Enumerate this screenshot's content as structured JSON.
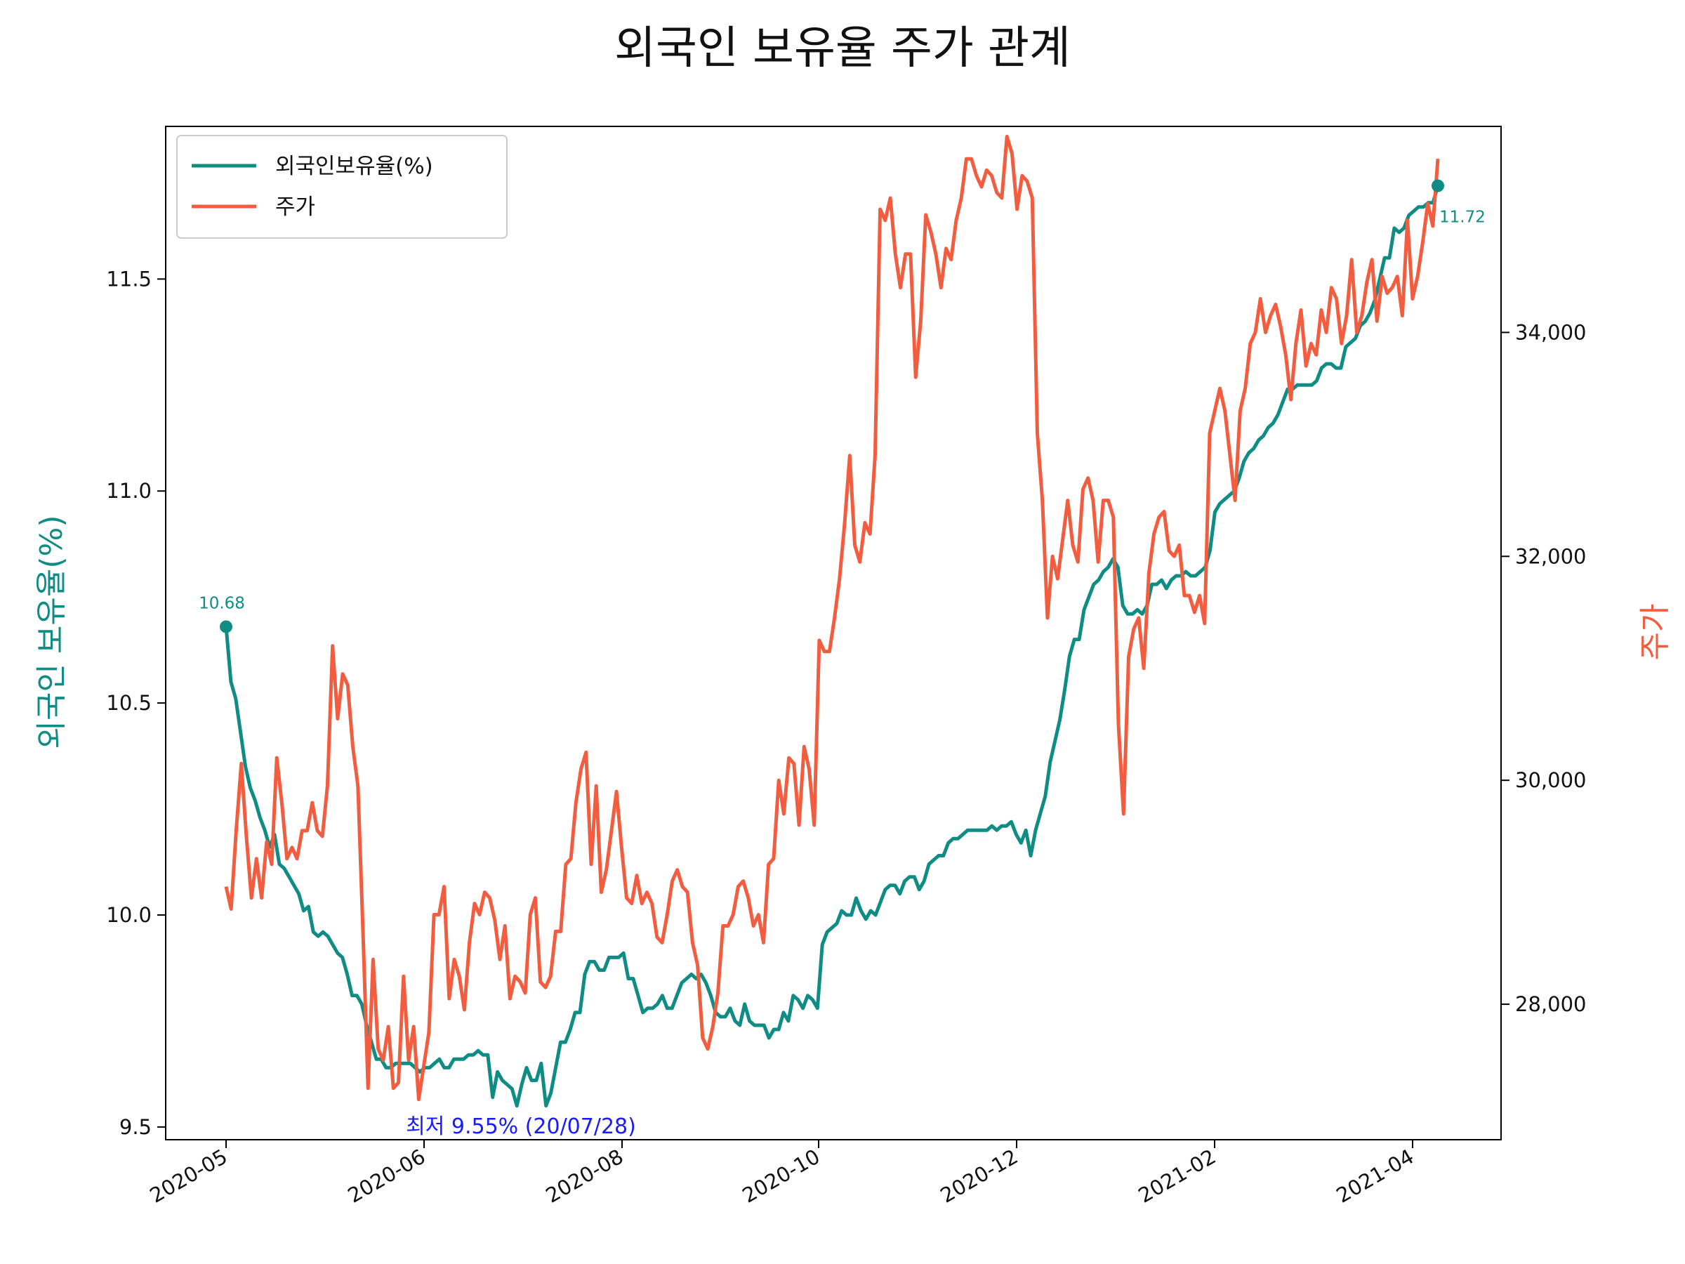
{
  "chart_data": {
    "type": "line",
    "title": "외국인 보유율 주가 관계",
    "ylabel_left": "외국인 보유율(%)",
    "ylabel_right": "주가",
    "legend_placement": "top-left",
    "grid": false,
    "x_ticks": [
      "2020-05",
      "2020-06",
      "2020-08",
      "2020-10",
      "2020-12",
      "2021-02",
      "2021-04"
    ],
    "y_left": {
      "ylim": [
        9.47,
        11.86
      ],
      "ticks": [
        "9.5",
        "10.0",
        "10.5",
        "11.0",
        "11.5"
      ],
      "tick_values": [
        9.5,
        10.0,
        10.5,
        11.0,
        11.5
      ]
    },
    "y_right": {
      "ylim": [
        26790,
        35840
      ],
      "ticks": [
        "28,000",
        "30,000",
        "32,000",
        "34,000"
      ],
      "tick_values": [
        28000,
        30000,
        32000,
        34000
      ]
    },
    "series": [
      {
        "name": "외국인보유율(%)",
        "axis": "left",
        "color": "#0f8c84",
        "values": [
          10.68,
          10.55,
          10.51,
          10.43,
          10.35,
          10.3,
          10.27,
          10.23,
          10.2,
          10.16,
          10.19,
          10.12,
          10.11,
          10.09,
          10.07,
          10.05,
          10.01,
          10.02,
          9.96,
          9.95,
          9.96,
          9.95,
          9.93,
          9.91,
          9.9,
          9.86,
          9.81,
          9.81,
          9.79,
          9.74,
          9.7,
          9.66,
          9.66,
          9.64,
          9.64,
          9.65,
          9.65,
          9.65,
          9.65,
          9.64,
          9.63,
          9.64,
          9.64,
          9.65,
          9.66,
          9.64,
          9.64,
          9.66,
          9.66,
          9.66,
          9.67,
          9.67,
          9.68,
          9.67,
          9.67,
          9.57,
          9.63,
          9.61,
          9.6,
          9.59,
          9.55,
          9.6,
          9.64,
          9.61,
          9.61,
          9.65,
          9.55,
          9.58,
          9.64,
          9.7,
          9.7,
          9.73,
          9.77,
          9.77,
          9.86,
          9.89,
          9.89,
          9.87,
          9.87,
          9.9,
          9.9,
          9.9,
          9.91,
          9.85,
          9.85,
          9.81,
          9.77,
          9.78,
          9.78,
          9.79,
          9.81,
          9.78,
          9.78,
          9.81,
          9.84,
          9.85,
          9.86,
          9.85,
          9.86,
          9.84,
          9.81,
          9.77,
          9.76,
          9.76,
          9.78,
          9.75,
          9.74,
          9.79,
          9.75,
          9.74,
          9.74,
          9.74,
          9.71,
          9.73,
          9.73,
          9.77,
          9.75,
          9.81,
          9.8,
          9.78,
          9.81,
          9.8,
          9.78,
          9.93,
          9.96,
          9.97,
          9.98,
          10.01,
          10.0,
          10.0,
          10.04,
          10.01,
          9.99,
          10.01,
          10.0,
          10.03,
          10.06,
          10.07,
          10.07,
          10.05,
          10.08,
          10.09,
          10.09,
          10.06,
          10.08,
          10.12,
          10.13,
          10.14,
          10.14,
          10.17,
          10.18,
          10.18,
          10.19,
          10.2,
          10.2,
          10.2,
          10.2,
          10.2,
          10.21,
          10.2,
          10.21,
          10.21,
          10.22,
          10.19,
          10.17,
          10.2,
          10.14,
          10.2,
          10.24,
          10.28,
          10.36,
          10.41,
          10.46,
          10.53,
          10.61,
          10.65,
          10.65,
          10.72,
          10.75,
          10.78,
          10.79,
          10.81,
          10.82,
          10.84,
          10.82,
          10.73,
          10.71,
          10.71,
          10.72,
          10.71,
          10.73,
          10.78,
          10.78,
          10.79,
          10.77,
          10.79,
          10.8,
          10.8,
          10.81,
          10.8,
          10.8,
          10.81,
          10.82,
          10.86,
          10.95,
          10.97,
          10.98,
          10.99,
          11.0,
          11.03,
          11.07,
          11.09,
          11.1,
          11.12,
          11.13,
          11.15,
          11.16,
          11.18,
          11.21,
          11.24,
          11.24,
          11.25,
          11.25,
          11.25,
          11.25,
          11.26,
          11.29,
          11.3,
          11.3,
          11.29,
          11.29,
          11.34,
          11.35,
          11.36,
          11.39,
          11.4,
          11.42,
          11.45,
          11.5,
          11.55,
          11.55,
          11.62,
          11.61,
          11.62,
          11.65,
          11.66,
          11.67,
          11.67,
          11.68,
          11.68,
          11.72
        ]
      },
      {
        "name": "주가",
        "axis": "right",
        "color": "#f25d3f",
        "values": [
          29050,
          28850,
          29550,
          30150,
          29500,
          28950,
          29300,
          28950,
          29450,
          29250,
          30200,
          29800,
          29300,
          29400,
          29300,
          29550,
          29550,
          29800,
          29550,
          29500,
          29950,
          31200,
          30550,
          30950,
          30850,
          30300,
          29950,
          28650,
          27250,
          28400,
          27600,
          27500,
          27800,
          27250,
          27300,
          28250,
          27500,
          27800,
          27150,
          27450,
          27750,
          28800,
          28800,
          29050,
          28050,
          28400,
          28250,
          27950,
          28550,
          28900,
          28800,
          29000,
          28950,
          28750,
          28400,
          28700,
          28050,
          28250,
          28200,
          28100,
          28800,
          28950,
          28200,
          28150,
          28250,
          28650,
          28650,
          29250,
          29300,
          29800,
          30100,
          30250,
          29250,
          29950,
          29000,
          29200,
          29550,
          29900,
          29400,
          28950,
          28900,
          29150,
          28900,
          29000,
          28900,
          28600,
          28550,
          28800,
          29100,
          29200,
          29050,
          29000,
          28550,
          28350,
          27700,
          27600,
          27800,
          28100,
          28700,
          28700,
          28800,
          29050,
          29100,
          28950,
          28700,
          28800,
          28550,
          29250,
          29300,
          30000,
          29700,
          30200,
          30150,
          29600,
          30300,
          30100,
          29600,
          31250,
          31150,
          31150,
          31450,
          31800,
          32300,
          32900,
          32100,
          31950,
          32300,
          32200,
          32900,
          35100,
          35000,
          35200,
          34700,
          34400,
          34700,
          34700,
          33600,
          34100,
          35050,
          34900,
          34700,
          34400,
          34750,
          34650,
          35000,
          35200,
          35550,
          35550,
          35400,
          35300,
          35450,
          35400,
          35250,
          35200,
          35750,
          35600,
          35100,
          35400,
          35350,
          35200,
          33100,
          32500,
          31450,
          32000,
          31800,
          32150,
          32500,
          32100,
          31950,
          32600,
          32700,
          32500,
          31950,
          32500,
          32500,
          32350,
          30500,
          29700,
          31100,
          31350,
          31450,
          31000,
          31850,
          32200,
          32350,
          32400,
          32050,
          32000,
          32100,
          31650,
          31650,
          31500,
          31650,
          31400,
          33100,
          33300,
          33500,
          33300,
          32900,
          32500,
          33300,
          33500,
          33900,
          34000,
          34300,
          34000,
          34150,
          34250,
          34050,
          33800,
          33400,
          33900,
          34200,
          33700,
          33900,
          33800,
          34200,
          34000,
          34400,
          34300,
          33900,
          34150,
          34650,
          34000,
          34150,
          34450,
          34650,
          34100,
          34500,
          34350,
          34400,
          34500,
          34150,
          35000,
          34300,
          34500,
          34800,
          35150,
          34950,
          35550
        ]
      }
    ],
    "annotations": {
      "start": "10.68",
      "end": "11.72",
      "min": "최저 9.55% (20/07/28)"
    }
  }
}
